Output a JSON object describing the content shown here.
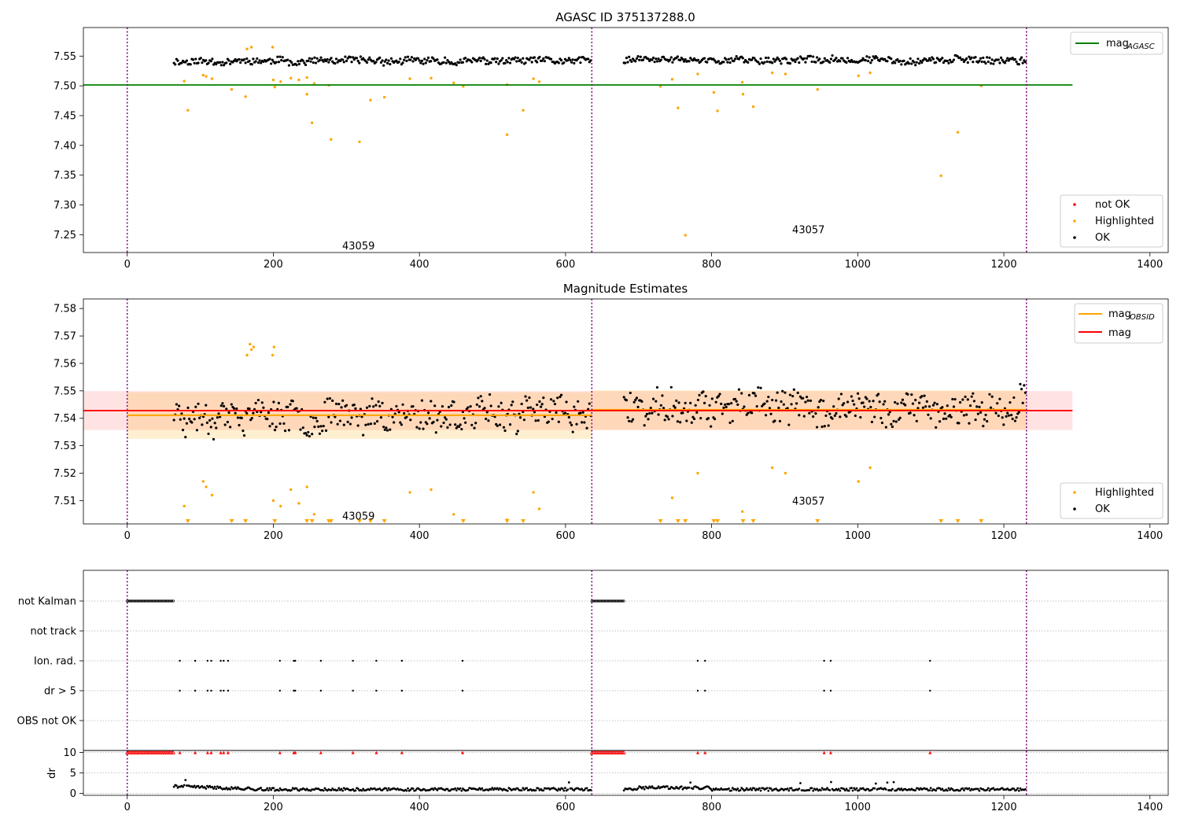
{
  "figure_title": "AGASC ID 375137288.0",
  "chart_data": [
    {
      "type": "scatter",
      "title": "AGASC ID 375137288.0",
      "xlim": [
        -60,
        1425
      ],
      "ylim": [
        7.22,
        7.598
      ],
      "x_ticks": [
        "0",
        "200",
        "400",
        "600",
        "800",
        "1000",
        "1200",
        "1400"
      ],
      "x_tick_values": [
        0,
        200,
        400,
        600,
        800,
        1000,
        1200,
        1400
      ],
      "y_ticks": [
        "7.25",
        "7.30",
        "7.35",
        "7.40",
        "7.45",
        "7.50",
        "7.55"
      ],
      "y_tick_values": [
        7.25,
        7.3,
        7.35,
        7.4,
        7.45,
        7.5,
        7.55
      ],
      "obs_boundaries": [
        0,
        636,
        1231
      ],
      "obsids": [
        {
          "label": "43059",
          "x": 318,
          "y": 7.232
        },
        {
          "label": "43057",
          "x": 934,
          "y": 7.259
        }
      ],
      "agasc_line": {
        "y": 7.5015,
        "x_range": [
          0,
          1294
        ],
        "color": "#008000"
      },
      "legend_upper": {
        "label_main": "mag",
        "label_sub": "AGASC"
      },
      "legend_lower": [
        "not OK",
        "Highlighted",
        "OK"
      ],
      "ok_segments": [
        {
          "x_range": [
            64,
            636
          ],
          "center": 7.5415,
          "spread": 0.007
        },
        {
          "x_range": [
            680,
            1231
          ],
          "center": 7.5435,
          "spread": 0.007
        }
      ],
      "highlighted_points": [
        [
          78,
          7.508
        ],
        [
          83,
          7.459
        ],
        [
          104,
          7.518
        ],
        [
          108,
          7.516
        ],
        [
          116,
          7.512
        ],
        [
          143,
          7.494
        ],
        [
          162,
          7.482
        ],
        [
          164,
          7.562
        ],
        [
          170,
          7.565
        ],
        [
          199,
          7.565
        ],
        [
          200,
          7.51
        ],
        [
          202,
          7.498
        ],
        [
          210,
          7.507
        ],
        [
          224,
          7.513
        ],
        [
          235,
          7.51
        ],
        [
          246,
          7.514
        ],
        [
          246,
          7.486
        ],
        [
          253,
          7.438
        ],
        [
          256,
          7.504
        ],
        [
          276,
          7.501
        ],
        [
          279,
          7.41
        ],
        [
          318,
          7.406
        ],
        [
          333,
          7.476
        ],
        [
          352,
          7.481
        ],
        [
          387,
          7.512
        ],
        [
          416,
          7.513
        ],
        [
          447,
          7.505
        ],
        [
          460,
          7.499
        ],
        [
          520,
          7.418
        ],
        [
          520,
          7.502
        ],
        [
          542,
          7.459
        ],
        [
          556,
          7.512
        ],
        [
          564,
          7.507
        ],
        [
          730,
          7.499
        ],
        [
          746,
          7.511
        ],
        [
          754,
          7.463
        ],
        [
          764,
          7.249
        ],
        [
          781,
          7.52
        ],
        [
          803,
          7.489
        ],
        [
          808,
          7.458
        ],
        [
          842,
          7.506
        ],
        [
          843,
          7.486
        ],
        [
          857,
          7.465
        ],
        [
          883,
          7.522
        ],
        [
          901,
          7.52
        ],
        [
          945,
          7.494
        ],
        [
          1001,
          7.517
        ],
        [
          1017,
          7.522
        ],
        [
          1114,
          7.349
        ],
        [
          1137,
          7.422
        ],
        [
          1169,
          7.5
        ]
      ]
    },
    {
      "type": "scatter",
      "title": "Magnitude Estimates",
      "xlim": [
        -60,
        1425
      ],
      "ylim": [
        7.5015,
        7.5835
      ],
      "x_ticks": [
        "0",
        "200",
        "400",
        "600",
        "800",
        "1000",
        "1200",
        "1400"
      ],
      "x_tick_values": [
        0,
        200,
        400,
        600,
        800,
        1000,
        1200,
        1400
      ],
      "y_ticks": [
        "7.51",
        "7.52",
        "7.53",
        "7.54",
        "7.55",
        "7.56",
        "7.57",
        "7.58"
      ],
      "y_tick_values": [
        7.51,
        7.52,
        7.53,
        7.54,
        7.55,
        7.56,
        7.57,
        7.58
      ],
      "obs_boundaries": [
        0,
        636,
        1231
      ],
      "obsids": [
        {
          "label": "43059",
          "x": 318,
          "y": 7.5045
        },
        {
          "label": "43057",
          "x": 934,
          "y": 7.51
        }
      ],
      "mag_line": {
        "y": 7.5428,
        "x_range": [
          -60,
          1294
        ],
        "band": [
          7.5357,
          7.5499
        ],
        "color": "#ff0000"
      },
      "obsid_lines": [
        {
          "y": 7.5411,
          "x_range": [
            0,
            636
          ],
          "band": [
            7.5325,
            7.5495
          ]
        },
        {
          "y": 7.5431,
          "x_range": [
            636,
            1231
          ],
          "band": [
            7.5358,
            7.5502
          ]
        }
      ],
      "legend_upper": [
        {
          "label_main": "mag",
          "label_sub": "OBSID"
        },
        {
          "label_main": "mag",
          "label_sub": ""
        }
      ],
      "legend_lower": [
        "Highlighted",
        "OK"
      ],
      "ok_segments": [
        {
          "x_range": [
            64,
            636
          ],
          "center": 7.5415,
          "spread": 0.007
        },
        {
          "x_range": [
            680,
            1231
          ],
          "center": 7.5435,
          "spread": 0.007
        }
      ],
      "highlighted_points": [
        [
          78,
          7.508
        ],
        [
          104,
          7.517
        ],
        [
          108,
          7.515
        ],
        [
          116,
          7.512
        ],
        [
          164,
          7.563
        ],
        [
          170,
          7.565
        ],
        [
          173,
          7.566
        ],
        [
          168,
          7.567
        ],
        [
          199,
          7.563
        ],
        [
          201,
          7.566
        ],
        [
          200,
          7.51
        ],
        [
          210,
          7.508
        ],
        [
          224,
          7.514
        ],
        [
          235,
          7.509
        ],
        [
          246,
          7.515
        ],
        [
          256,
          7.505
        ],
        [
          387,
          7.513
        ],
        [
          416,
          7.514
        ],
        [
          447,
          7.505
        ],
        [
          520,
          7.503
        ],
        [
          556,
          7.513
        ],
        [
          564,
          7.507
        ],
        [
          746,
          7.511
        ],
        [
          781,
          7.52
        ],
        [
          842,
          7.506
        ],
        [
          883,
          7.522
        ],
        [
          901,
          7.52
        ],
        [
          1001,
          7.517
        ],
        [
          1017,
          7.522
        ]
      ],
      "offscale_markers": [
        83,
        143,
        162,
        202,
        246,
        253,
        276,
        279,
        318,
        333,
        352,
        460,
        520,
        542,
        730,
        754,
        764,
        803,
        808,
        843,
        857,
        945,
        1114,
        1137,
        1169
      ]
    },
    {
      "type": "scatter",
      "title": "",
      "xlim": [
        -60,
        1425
      ],
      "rows": [
        "not Kalman",
        "not track",
        "Ion. rad.",
        "dr > 5",
        "OBS not OK"
      ],
      "x_ticks": [
        "0",
        "200",
        "400",
        "600",
        "800",
        "1000",
        "1200",
        "1400"
      ],
      "x_tick_values": [
        0,
        200,
        400,
        600,
        800,
        1000,
        1200,
        1400
      ],
      "obs_boundaries": [
        0,
        636,
        1231
      ],
      "not_kalman_ranges": [
        [
          0,
          64
        ],
        [
          636,
          680
        ]
      ],
      "event_x": [
        72,
        93,
        110,
        115,
        128,
        132,
        138,
        209,
        228,
        230,
        265,
        309,
        341,
        376,
        459,
        781,
        791,
        954,
        963,
        1099
      ],
      "dr_ylim": [
        -0.5,
        10.5
      ],
      "dr_ticks": [
        "0",
        "5",
        "10"
      ],
      "dr_tick_values": [
        0,
        5,
        10
      ],
      "dr_ylabel": "dr"
    }
  ]
}
